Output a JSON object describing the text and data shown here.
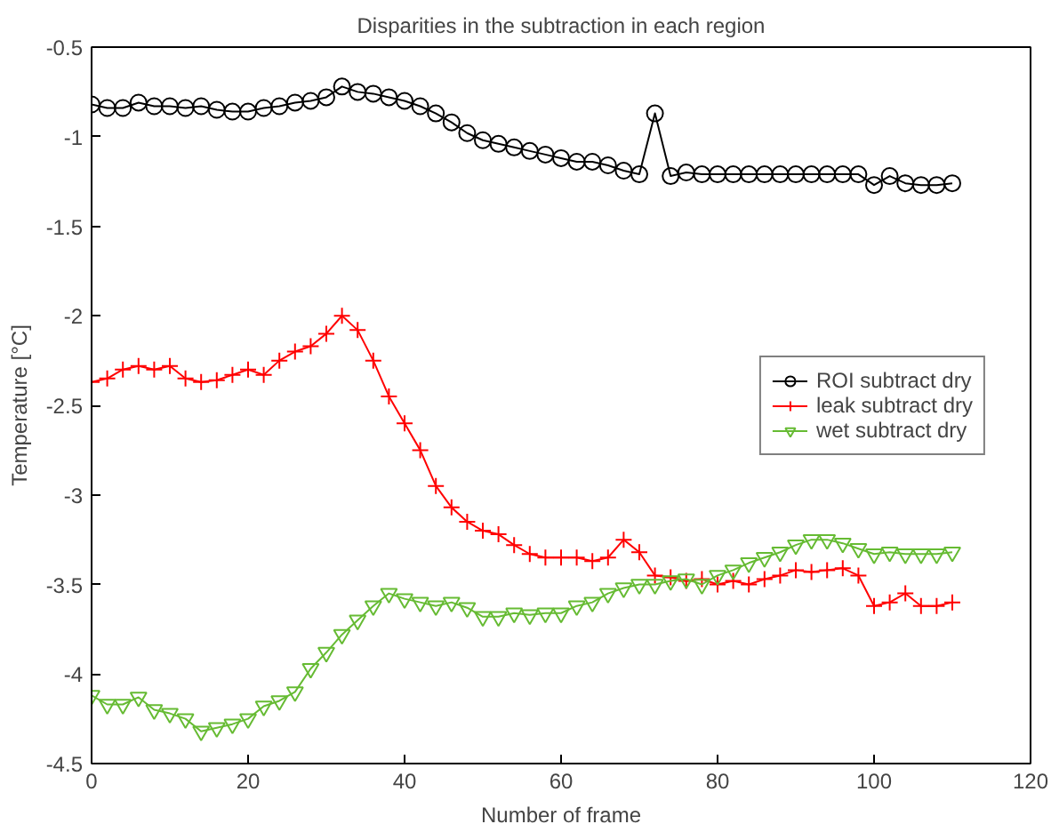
{
  "chart_data": {
    "type": "line",
    "title": "Disparities in the subtraction in each region",
    "xlabel": "Number of frame",
    "ylabel": "Temperature [°C]",
    "x": [
      0,
      2,
      4,
      6,
      8,
      10,
      12,
      14,
      16,
      18,
      20,
      22,
      24,
      26,
      28,
      30,
      32,
      34,
      36,
      38,
      40,
      42,
      44,
      46,
      48,
      50,
      52,
      54,
      56,
      58,
      60,
      62,
      64,
      66,
      68,
      70,
      72,
      74,
      76,
      78,
      80,
      82,
      84,
      86,
      88,
      90,
      92,
      94,
      96,
      98,
      100,
      102,
      104,
      106,
      108,
      110
    ],
    "series": [
      {
        "name": "ROI subtract dry",
        "color": "#000000",
        "marker": "circle",
        "values": [
          -0.82,
          -0.84,
          -0.84,
          -0.81,
          -0.83,
          -0.83,
          -0.84,
          -0.83,
          -0.85,
          -0.86,
          -0.86,
          -0.84,
          -0.83,
          -0.81,
          -0.8,
          -0.78,
          -0.72,
          -0.75,
          -0.76,
          -0.78,
          -0.8,
          -0.83,
          -0.87,
          -0.92,
          -0.98,
          -1.02,
          -1.04,
          -1.06,
          -1.08,
          -1.1,
          -1.12,
          -1.14,
          -1.14,
          -1.16,
          -1.19,
          -1.21,
          -0.87,
          -1.22,
          -1.2,
          -1.21,
          -1.21,
          -1.21,
          -1.21,
          -1.21,
          -1.21,
          -1.21,
          -1.21,
          -1.21,
          -1.21,
          -1.21,
          -1.27,
          -1.22,
          -1.26,
          -1.27,
          -1.27,
          -1.26
        ]
      },
      {
        "name": "leak subtract dry",
        "color": "#ff0000",
        "marker": "cross",
        "values": [
          -2.37,
          -2.35,
          -2.3,
          -2.28,
          -2.3,
          -2.28,
          -2.35,
          -2.37,
          -2.36,
          -2.33,
          -2.3,
          -2.33,
          -2.25,
          -2.2,
          -2.17,
          -2.1,
          -2.0,
          -2.08,
          -2.25,
          -2.45,
          -2.6,
          -2.75,
          -2.95,
          -3.07,
          -3.15,
          -3.2,
          -3.22,
          -3.28,
          -3.33,
          -3.35,
          -3.35,
          -3.35,
          -3.37,
          -3.35,
          -3.25,
          -3.32,
          -3.45,
          -3.46,
          -3.48,
          -3.47,
          -3.5,
          -3.48,
          -3.5,
          -3.47,
          -3.45,
          -3.42,
          -3.43,
          -3.42,
          -3.41,
          -3.45,
          -3.62,
          -3.6,
          -3.55,
          -3.62,
          -3.62,
          -3.6
        ]
      },
      {
        "name": "wet subtract dry",
        "color": "#66bb33",
        "marker": "triangle",
        "values": [
          -4.12,
          -4.17,
          -4.17,
          -4.13,
          -4.2,
          -4.22,
          -4.25,
          -4.32,
          -4.3,
          -4.28,
          -4.25,
          -4.18,
          -4.15,
          -4.1,
          -3.97,
          -3.88,
          -3.78,
          -3.7,
          -3.62,
          -3.55,
          -3.58,
          -3.6,
          -3.62,
          -3.6,
          -3.63,
          -3.68,
          -3.68,
          -3.66,
          -3.67,
          -3.66,
          -3.66,
          -3.62,
          -3.6,
          -3.55,
          -3.52,
          -3.5,
          -3.5,
          -3.48,
          -3.47,
          -3.5,
          -3.45,
          -3.42,
          -3.38,
          -3.35,
          -3.32,
          -3.28,
          -3.25,
          -3.25,
          -3.27,
          -3.3,
          -3.33,
          -3.32,
          -3.33,
          -3.33,
          -3.33,
          -3.32
        ]
      }
    ],
    "xlim": [
      0,
      120
    ],
    "xticks": [
      0,
      20,
      40,
      60,
      80,
      100,
      120
    ],
    "ylim": [
      -4.5,
      -0.5
    ],
    "yticks": [
      -4.5,
      -4,
      -3.5,
      -3,
      -2.5,
      -2,
      -1.5,
      -1,
      -0.5
    ],
    "grid": false,
    "legend": "right"
  }
}
